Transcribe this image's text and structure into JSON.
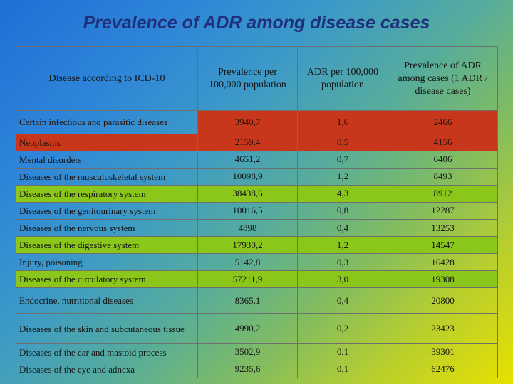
{
  "title": "Prevalence of ADR among disease cases",
  "headers": {
    "disease": "Disease according to ICD-10",
    "prevalence": "Prevalence per 100,000 population",
    "adr": "ADR per 100,000 population",
    "ratio": "Prevalence of ADR among cases (1 ADR / disease cases)"
  },
  "rows": [
    {
      "disease": "Certain infectious and parasitic diseases",
      "prevalence": "3940,7",
      "adr": "1,6",
      "ratio": "2466"
    },
    {
      "disease": "Neoplasms",
      "prevalence": "2159,4",
      "adr": "0,5",
      "ratio": "4156"
    },
    {
      "disease": "Mental disorders",
      "prevalence": "4651,2",
      "adr": "0,7",
      "ratio": "6406"
    },
    {
      "disease": "Diseases of the musculoskeletal system",
      "prevalence": "10098,9",
      "adr": "1,2",
      "ratio": "8493"
    },
    {
      "disease": "Diseases of the respiratory system",
      "prevalence": "38438,6",
      "adr": "4,3",
      "ratio": "8912"
    },
    {
      "disease": "Diseases of the genitourinary system",
      "prevalence": "10016,5",
      "adr": "0,8",
      "ratio": "12287"
    },
    {
      "disease": "Diseases of the nervous system",
      "prevalence": "4898",
      "adr": "0,4",
      "ratio": "13253"
    },
    {
      "disease": "Diseases of the digestive system",
      "prevalence": "17930,2",
      "adr": "1,2",
      "ratio": "14547"
    },
    {
      "disease": "Injury, poisoning",
      "prevalence": "5142,8",
      "adr": "0,3",
      "ratio": "16428"
    },
    {
      "disease": "Diseases of the circulatory system",
      "prevalence": "57211,9",
      "adr": "3,0",
      "ratio": "19308"
    },
    {
      "disease": "Endocrine, nutritional diseases",
      "prevalence": "8365,1",
      "adr": "0,4",
      "ratio": "20800"
    },
    {
      "disease": "Diseases of the skin and subcutaneous tissue",
      "prevalence": "4990,2",
      "adr": "0,2",
      "ratio": "23423"
    },
    {
      "disease": "Diseases of the ear and mastoid process",
      "prevalence": "3502,9",
      "adr": "0,1",
      "ratio": "39301"
    },
    {
      "disease": "Diseases of the eye and adnexa",
      "prevalence": "9235,6",
      "adr": "0,1",
      "ratio": "62476"
    }
  ],
  "row_highlight_colors": {
    "red": "#c8371c",
    "green": "#8bc61b"
  }
}
